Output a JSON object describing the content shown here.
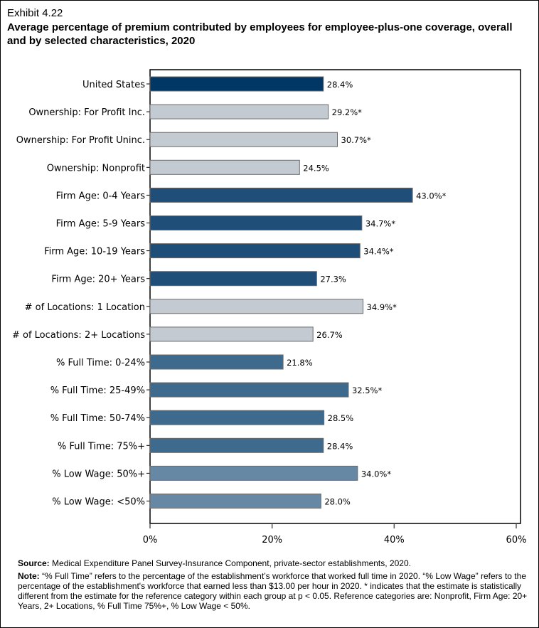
{
  "exhibit": "Exhibit 4.22",
  "title": "Average percentage of premium contributed by employees for employee-plus-one coverage, overall and by selected characteristics, 2020",
  "chart_data": {
    "type": "bar",
    "orientation": "horizontal",
    "categories": [
      "United States",
      "Ownership: For Profit Inc.",
      "Ownership: For Profit Uninc.",
      "Ownership: Nonprofit",
      "Firm Age: 0-4 Years",
      "Firm Age: 5-9 Years",
      "Firm Age: 10-19 Years",
      "Firm Age: 20+ Years",
      "# of Locations: 1 Location",
      "# of Locations: 2+ Locations",
      "% Full Time: 0-24%",
      "% Full Time: 25-49%",
      "% Full Time: 50-74%",
      "% Full Time: 75%+",
      "% Low Wage: 50%+",
      "% Low Wage: <50%"
    ],
    "values": [
      28.4,
      29.2,
      30.7,
      24.5,
      43.0,
      34.7,
      34.4,
      27.3,
      34.9,
      26.7,
      21.8,
      32.5,
      28.5,
      28.4,
      34.0,
      28.0
    ],
    "data_labels": [
      "28.4%",
      "29.2%*",
      "30.7%*",
      "24.5%",
      "43.0%*",
      "34.7%*",
      "34.4%*",
      "27.3%",
      "34.9%*",
      "26.7%",
      "21.8%",
      "32.5%*",
      "28.5%",
      "28.4%",
      "34.0%*",
      "28.0%"
    ],
    "colors": [
      "#003764",
      "#c3cad2",
      "#c3cad2",
      "#c3cad2",
      "#1f4e79",
      "#1f4e79",
      "#1f4e79",
      "#1f4e79",
      "#c3cad2",
      "#c3cad2",
      "#3e6a8e",
      "#3e6a8e",
      "#3e6a8e",
      "#3e6a8e",
      "#6688a5",
      "#6688a5"
    ],
    "xlim": [
      0,
      60
    ],
    "xticks": [
      0,
      20,
      40,
      60
    ],
    "xtick_labels": [
      "0%",
      "20%",
      "40%",
      "60%"
    ],
    "xlabel": "",
    "ylabel": "",
    "grid": false
  },
  "source_label": "Source:",
  "source": "Medical Expenditure Panel Survey-Insurance Component, private-sector establishments, 2020.",
  "note_label": "Note:",
  "note": "“% Full Time” refers to the percentage of the establishment’s workforce that worked full time in 2020. “% Low Wage” refers to the percentage of the establishment's workforce that earned less than $13.00 per hour in 2020. * indicates that the estimate is statistically different from the estimate for the reference category within each group at p < 0.05.  Reference categories are: Nonprofit, Firm Age: 20+ Years, 2+ Locations, % Full Time 75%+, % Low Wage < 50%."
}
